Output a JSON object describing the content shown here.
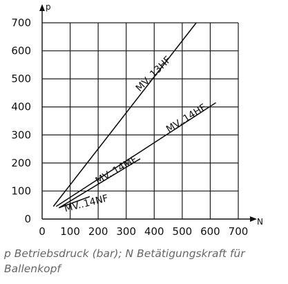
{
  "chart_data": {
    "type": "line",
    "xlabel": "N",
    "ylabel": "p",
    "xlim": [
      0,
      700
    ],
    "ylim": [
      0,
      700
    ],
    "x_ticks": [
      "0",
      "100",
      "200",
      "300",
      "400",
      "500",
      "600",
      "700"
    ],
    "y_ticks": [
      "0",
      "100",
      "200",
      "300",
      "400",
      "500",
      "600",
      "700"
    ],
    "grid": true,
    "series": [
      {
        "name": "MV..13HF",
        "x": [
          40,
          550
        ],
        "y": [
          45,
          700
        ]
      },
      {
        "name": "MV..14HF",
        "x": [
          50,
          620
        ],
        "y": [
          45,
          415
        ]
      },
      {
        "name": "MV..14MF",
        "x": [
          60,
          350
        ],
        "y": [
          40,
          215
        ]
      },
      {
        "name": "MV..14NF",
        "x": [
          60,
          170
        ],
        "y": [
          40,
          80
        ]
      }
    ]
  },
  "caption": "p Betriebsdruck (bar); N Betätigungskraft für Ballenkopf"
}
